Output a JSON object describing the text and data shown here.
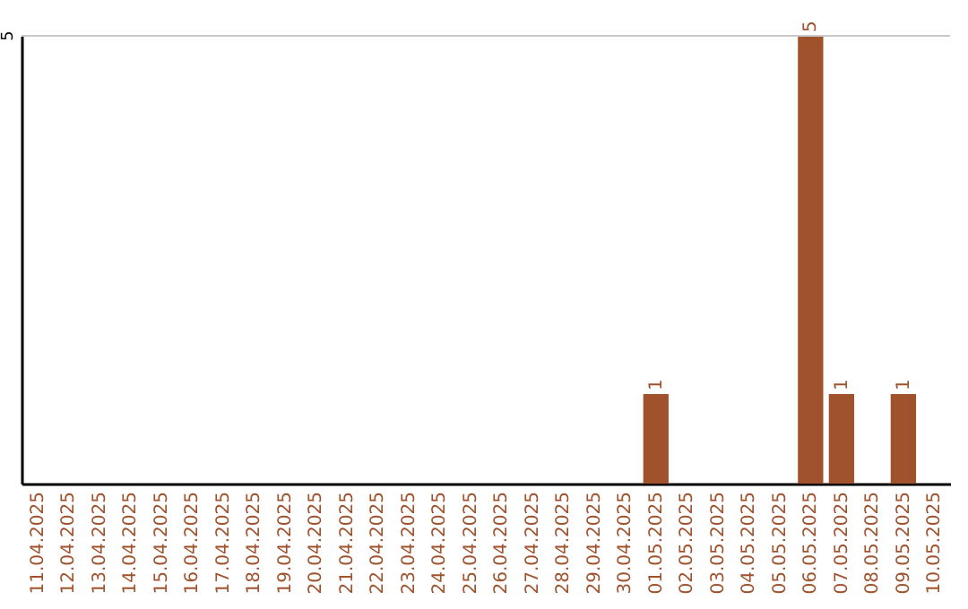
{
  "chart_data": {
    "type": "bar",
    "categories": [
      "11.04.2025",
      "12.04.2025",
      "13.04.2025",
      "14.04.2025",
      "15.04.2025",
      "16.04.2025",
      "17.04.2025",
      "18.04.2025",
      "19.04.2025",
      "20.04.2025",
      "21.04.2025",
      "22.04.2025",
      "23.04.2025",
      "24.04.2025",
      "25.04.2025",
      "26.04.2025",
      "27.04.2025",
      "28.04.2025",
      "29.04.2025",
      "30.04.2025",
      "01.05.2025",
      "02.05.2025",
      "03.05.2025",
      "04.05.2025",
      "05.05.2025",
      "06.05.2025",
      "07.05.2025",
      "08.05.2025",
      "09.05.2025",
      "10.05.2025"
    ],
    "values": [
      null,
      null,
      null,
      null,
      null,
      null,
      null,
      null,
      null,
      null,
      null,
      null,
      null,
      null,
      null,
      null,
      null,
      null,
      null,
      null,
      1,
      null,
      null,
      null,
      null,
      5,
      1,
      null,
      1,
      null
    ],
    "value_labels": [
      null,
      null,
      null,
      null,
      null,
      null,
      null,
      null,
      null,
      null,
      null,
      null,
      null,
      null,
      null,
      null,
      null,
      null,
      null,
      null,
      "1",
      null,
      null,
      null,
      null,
      "5",
      "1",
      null,
      "1",
      null
    ],
    "color": "#a0522d",
    "ref_lines": [
      {
        "axis": "y",
        "value": 5,
        "label": "5",
        "color": "#c8c8c8"
      }
    ]
  }
}
